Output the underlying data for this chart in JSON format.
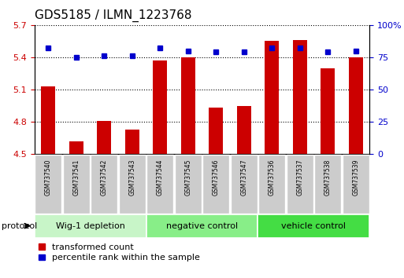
{
  "title": "GDS5185 / ILMN_1223768",
  "samples": [
    "GSM737540",
    "GSM737541",
    "GSM737542",
    "GSM737543",
    "GSM737544",
    "GSM737545",
    "GSM737546",
    "GSM737547",
    "GSM737536",
    "GSM737537",
    "GSM737538",
    "GSM737539"
  ],
  "transformed_count": [
    5.13,
    4.62,
    4.81,
    4.73,
    5.37,
    5.4,
    4.93,
    4.95,
    5.55,
    5.56,
    5.3,
    5.4
  ],
  "percentile_rank": [
    82,
    75,
    76,
    76,
    82,
    80,
    79,
    79,
    82,
    82,
    79,
    80
  ],
  "groups": [
    {
      "label": "Wig-1 depletion",
      "start": 0,
      "end": 4,
      "color": "#c8f5c8"
    },
    {
      "label": "negative control",
      "start": 4,
      "end": 8,
      "color": "#88ee88"
    },
    {
      "label": "vehicle control",
      "start": 8,
      "end": 12,
      "color": "#44dd44"
    }
  ],
  "ylim_left": [
    4.5,
    5.7
  ],
  "ylim_right": [
    0,
    100
  ],
  "yticks_left": [
    4.5,
    4.8,
    5.1,
    5.4,
    5.7
  ],
  "yticks_right": [
    0,
    25,
    50,
    75,
    100
  ],
  "bar_color": "#cc0000",
  "dot_color": "#0000cc",
  "bar_width": 0.5,
  "sample_box_color": "#cccccc",
  "protocol_label": "protocol",
  "legend": [
    "transformed count",
    "percentile rank within the sample"
  ]
}
